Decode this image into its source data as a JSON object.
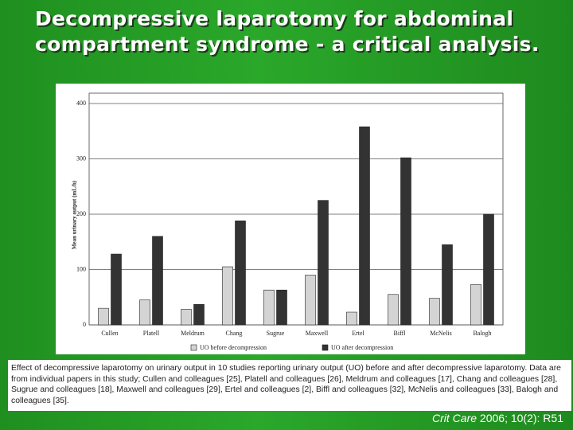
{
  "title": "Decompressive laparotomy for abdominal compartment syndrome - a critical analysis.",
  "chart_data": {
    "type": "bar",
    "y_label": "Mean urinary output (mL/h)",
    "categories": [
      "Cullen",
      "Platell",
      "Meldrum",
      "Chang",
      "Sugrue",
      "Maxwell",
      "Ertel",
      "Biffl",
      "McNelis",
      "Balogh"
    ],
    "series": [
      {
        "name": "UO before decompression",
        "color": "#d4d4d4",
        "values": [
          30,
          45,
          28,
          105,
          63,
          90,
          23,
          55,
          48,
          73
        ]
      },
      {
        "name": "UO after decompression",
        "color": "#333333",
        "values": [
          128,
          160,
          37,
          188,
          63,
          225,
          358,
          302,
          145,
          200
        ]
      }
    ],
    "ylim": [
      0,
      400
    ],
    "yticks": [
      0,
      100,
      200,
      300,
      400
    ],
    "grid": true
  },
  "caption": "Effect of decompressive laparotomy on urinary output in 10 studies reporting urinary output (UO) before and after decompressive laparotomy. Data are from individual papers in this study; Cullen and colleagues [25], Platell and colleagues [26], Meldrum and colleagues [17], Chang and colleagues [28], Sugrue and colleagues [18], Maxwell and colleagues [29], Ertel and colleagues [2], Biffl and colleagues [32], McNelis and colleagues [33], Balogh and colleagues [35].",
  "citation": {
    "journal": "Crit Care",
    "details": "2006; 10(2): R51"
  }
}
